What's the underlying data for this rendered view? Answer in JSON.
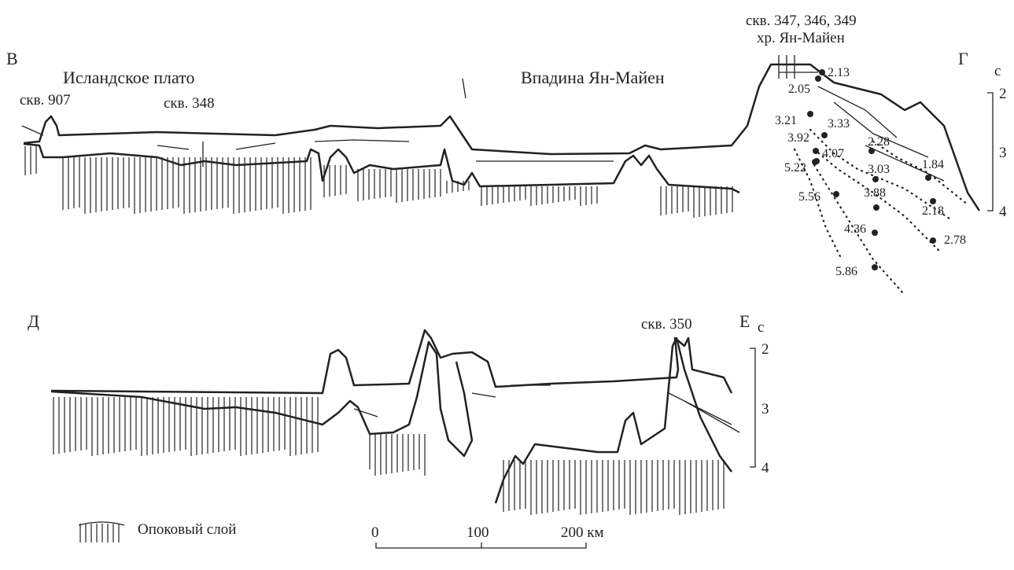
{
  "profile_top": {
    "left_label": "В",
    "right_label": "Г",
    "regions": [
      "Исландское плато",
      "Впадина Ян-Майен"
    ],
    "wells": [
      "скв. 907",
      "скв. 348",
      "скв. 347, 346, 349"
    ],
    "ridge": "хр. Ян-Майен",
    "axis_unit": "с",
    "axis_ticks": [
      "2",
      "3",
      "4"
    ],
    "velocities": [
      "2.13",
      "2.05",
      "3.21",
      "3.33",
      "3.92",
      "2.28",
      "4.07",
      "1.84",
      "5.22",
      "3.03",
      "3.88",
      "5.56",
      "2.18",
      "4.36",
      "2.78",
      "5.86"
    ]
  },
  "profile_bottom": {
    "left_label": "Д",
    "right_label": "Е",
    "wells": [
      "скв. 350"
    ],
    "axis_unit": "с",
    "axis_ticks": [
      "2",
      "3",
      "4"
    ]
  },
  "legend": {
    "label": "Опоковый слой"
  },
  "scale": {
    "ticks": [
      "0",
      "100",
      "200 км"
    ]
  }
}
